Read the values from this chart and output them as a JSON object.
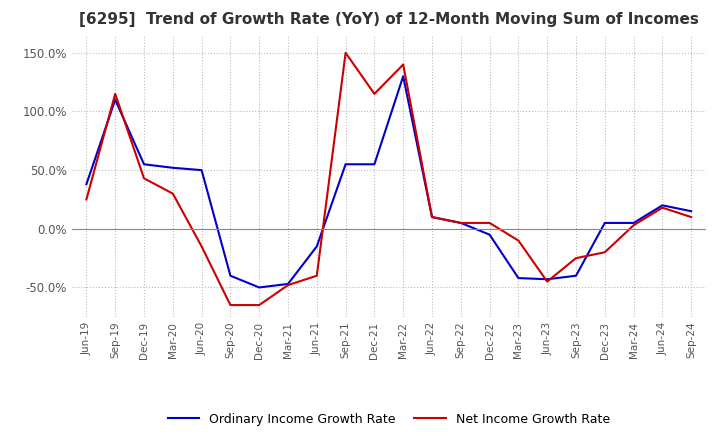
{
  "title": "[6295]  Trend of Growth Rate (YoY) of 12-Month Moving Sum of Incomes",
  "title_fontsize": 11,
  "ylim": [
    -75,
    165
  ],
  "yticks": [
    -50.0,
    0.0,
    50.0,
    100.0,
    150.0
  ],
  "background_color": "#ffffff",
  "grid_color": "#bbbbbb",
  "legend_labels": [
    "Ordinary Income Growth Rate",
    "Net Income Growth Rate"
  ],
  "line_colors": [
    "#0000cc",
    "#cc0000"
  ],
  "x_labels": [
    "Jun-19",
    "Sep-19",
    "Dec-19",
    "Mar-20",
    "Jun-20",
    "Sep-20",
    "Dec-20",
    "Mar-21",
    "Jun-21",
    "Sep-21",
    "Dec-21",
    "Mar-22",
    "Jun-22",
    "Sep-22",
    "Dec-22",
    "Mar-23",
    "Jun-23",
    "Sep-23",
    "Dec-23",
    "Mar-24",
    "Jun-24",
    "Sep-24"
  ],
  "ordinary_income": [
    38,
    110,
    55,
    52,
    50,
    -40,
    -50,
    -47,
    -15,
    55,
    55,
    130,
    10,
    5,
    -5,
    -42,
    -43,
    -40,
    5,
    5,
    20,
    15
  ],
  "net_income": [
    25,
    115,
    43,
    30,
    -15,
    -65,
    -65,
    -48,
    -40,
    150,
    115,
    140,
    10,
    5,
    5,
    -10,
    -45,
    -25,
    -20,
    3,
    18,
    10
  ]
}
